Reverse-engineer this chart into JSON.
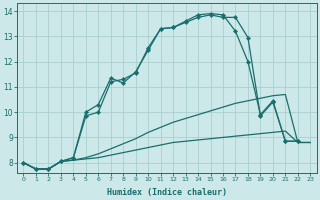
{
  "background_color": "#cce8e8",
  "grid_color": "#aacfcf",
  "line_color": "#1a6e6e",
  "xlabel": "Humidex (Indice chaleur)",
  "xlim": [
    -0.5,
    23.5
  ],
  "ylim": [
    7.6,
    14.3
  ],
  "yticks": [
    8,
    9,
    10,
    11,
    12,
    13,
    14
  ],
  "xticks": [
    0,
    1,
    2,
    3,
    4,
    5,
    6,
    7,
    8,
    9,
    10,
    11,
    12,
    13,
    14,
    15,
    16,
    17,
    18,
    19,
    20,
    21,
    22,
    23
  ],
  "series": [
    {
      "x": [
        0,
        1,
        2,
        3,
        4,
        5,
        6,
        7,
        8,
        9,
        10,
        11,
        12,
        13,
        14,
        15,
        16,
        17,
        18,
        19,
        20,
        21,
        22,
        23
      ],
      "y": [
        8.0,
        7.75,
        7.75,
        8.05,
        8.1,
        8.15,
        8.2,
        8.3,
        8.4,
        8.5,
        8.6,
        8.7,
        8.8,
        8.85,
        8.9,
        8.95,
        9.0,
        9.05,
        9.1,
        9.15,
        9.2,
        9.25,
        8.8,
        8.8
      ],
      "marker": false
    },
    {
      "x": [
        0,
        1,
        2,
        3,
        4,
        5,
        6,
        7,
        8,
        9,
        10,
        11,
        12,
        13,
        14,
        15,
        16,
        17,
        18,
        19,
        20,
        21,
        22,
        23
      ],
      "y": [
        8.0,
        7.75,
        7.75,
        8.05,
        8.1,
        8.2,
        8.35,
        8.55,
        8.75,
        8.95,
        9.2,
        9.4,
        9.6,
        9.75,
        9.9,
        10.05,
        10.2,
        10.35,
        10.45,
        10.55,
        10.65,
        10.7,
        8.8,
        8.8
      ],
      "marker": false
    },
    {
      "x": [
        0,
        1,
        2,
        3,
        4,
        5,
        6,
        7,
        8,
        9,
        10,
        11,
        12,
        13,
        14,
        15,
        16,
        17,
        18,
        19,
        20,
        21,
        22
      ],
      "y": [
        8.0,
        7.75,
        7.75,
        8.05,
        8.2,
        10.0,
        10.3,
        11.35,
        11.15,
        11.6,
        12.45,
        13.3,
        13.35,
        13.55,
        13.75,
        13.85,
        13.75,
        13.75,
        12.95,
        9.85,
        10.4,
        8.85,
        8.85
      ],
      "marker": true
    },
    {
      "x": [
        0,
        1,
        2,
        3,
        4,
        5,
        6,
        7,
        8,
        9,
        10,
        11,
        12,
        13,
        14,
        15,
        16,
        17,
        18,
        19,
        20,
        21,
        22
      ],
      "y": [
        8.0,
        7.75,
        7.75,
        8.05,
        8.2,
        9.85,
        10.0,
        11.2,
        11.3,
        11.55,
        12.55,
        13.3,
        13.35,
        13.6,
        13.85,
        13.9,
        13.85,
        13.2,
        12.0,
        9.9,
        10.45,
        8.85,
        8.85
      ],
      "marker": true
    }
  ]
}
